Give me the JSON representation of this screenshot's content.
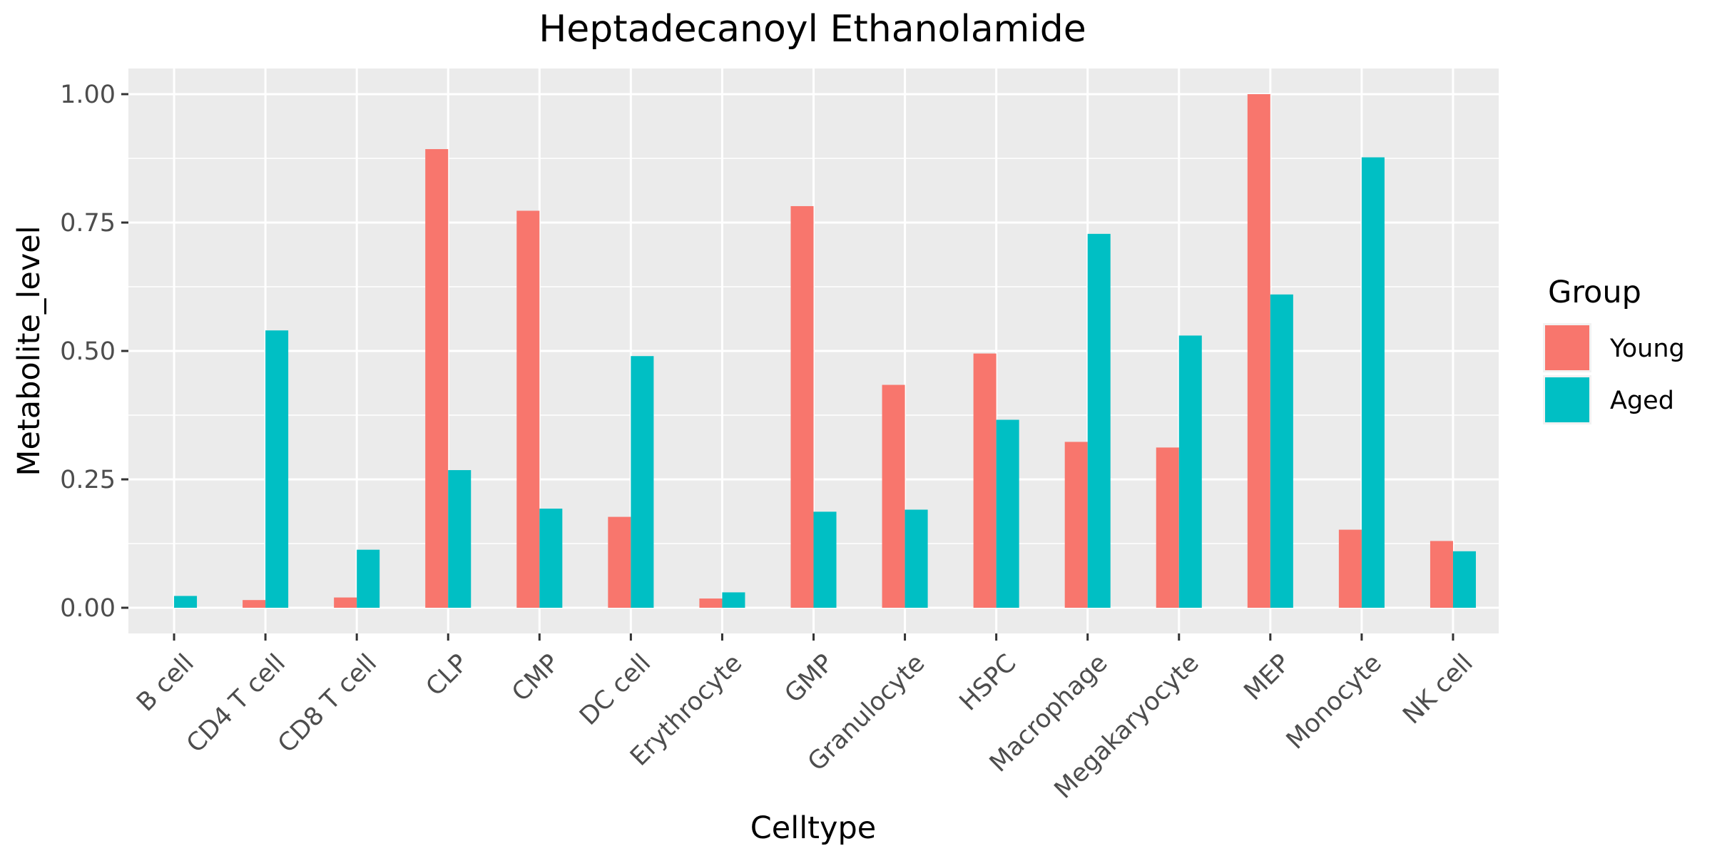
{
  "chart_data": {
    "type": "bar",
    "title": "Heptadecanoyl Ethanolamide",
    "xlabel": "Celltype",
    "ylabel": "Metabolite_level",
    "categories": [
      "B cell",
      "CD4 T cell",
      "CD8 T cell",
      "CLP",
      "CMP",
      "DC cell",
      "Erythrocyte",
      "GMP",
      "Granulocyte",
      "HSPC",
      "Macrophage",
      "Megakaryocyte",
      "MEP",
      "Monocyte",
      "NK cell"
    ],
    "series": [
      {
        "name": "Young",
        "color": "#F8766D",
        "values": [
          null,
          0.015,
          0.02,
          0.893,
          0.773,
          0.177,
          0.018,
          0.782,
          0.434,
          0.495,
          0.323,
          0.312,
          1.0,
          0.152,
          0.13
        ]
      },
      {
        "name": "Aged",
        "color": "#00BFC4",
        "values": [
          0.023,
          0.54,
          0.113,
          0.268,
          0.193,
          0.49,
          0.03,
          0.187,
          0.191,
          0.366,
          0.728,
          0.53,
          0.61,
          0.877,
          0.11
        ]
      }
    ],
    "ylim": [
      -0.05,
      1.05
    ],
    "yticks": [
      0,
      0.25,
      0.5,
      0.75,
      1.0
    ],
    "ytick_labels": [
      "0.00",
      "0.25",
      "0.50",
      "0.75",
      "1.00"
    ],
    "grid": true,
    "legend": {
      "title": "Group",
      "position": "right"
    },
    "panel_background": "#EBEBEB",
    "grid_color": "#FFFFFF"
  }
}
